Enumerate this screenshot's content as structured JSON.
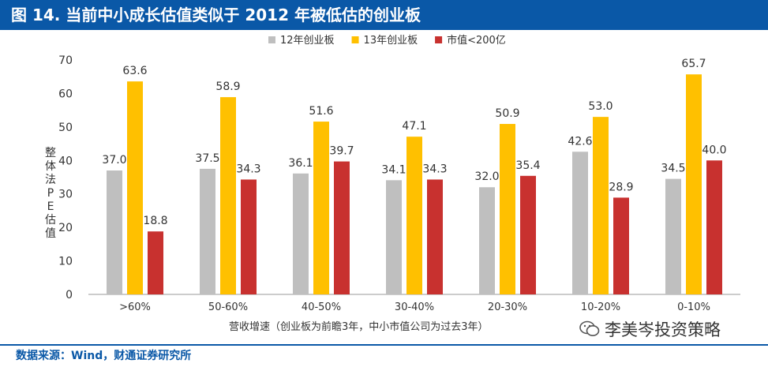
{
  "header": {
    "title": "图 14. 当前中小成长估值类似于 2012 年被低估的创业板"
  },
  "footer": {
    "source": "数据来源：Wind，财通证券研究所"
  },
  "watermark": {
    "text": "李美岑投资策略",
    "icon": "wechat-icon"
  },
  "colors": {
    "header_bg": "#0a58a7",
    "series": [
      "#bfbfbf",
      "#ffc000",
      "#c8312f"
    ]
  },
  "chart_data": {
    "type": "bar",
    "xlabel": "营收增速（创业板为前瞻3年，中小市值公司为过去3年）",
    "ylabel": "整体法PE估值",
    "ylim": [
      0,
      70
    ],
    "yticks": [
      0,
      10,
      20,
      30,
      40,
      50,
      60,
      70
    ],
    "legend_position": "top-center",
    "grid": false,
    "categories": [
      ">60%",
      "50-60%",
      "40-50%",
      "30-40%",
      "20-30%",
      "10-20%",
      "0-10%"
    ],
    "series": [
      {
        "name": "12年创业板",
        "values": [
          37.0,
          37.5,
          36.1,
          34.1,
          32.0,
          42.6,
          34.5
        ],
        "labels": [
          "37.0",
          "37.5",
          "36.1",
          "34.1",
          "32.0",
          "42.6",
          "34.5"
        ]
      },
      {
        "name": "13年创业板",
        "values": [
          63.6,
          58.9,
          51.6,
          47.1,
          50.9,
          53.0,
          65.7
        ],
        "labels": [
          "63.6",
          "58.9",
          "51.6",
          "47.1",
          "50.9",
          "53.0",
          "65.7"
        ]
      },
      {
        "name": "市值<200亿",
        "values": [
          18.8,
          34.3,
          39.7,
          34.3,
          35.4,
          28.9,
          40.0
        ],
        "labels": [
          "18.8",
          "34.3",
          "39.7",
          "34.3",
          "35.4",
          "28.9",
          "40.0"
        ]
      }
    ]
  }
}
